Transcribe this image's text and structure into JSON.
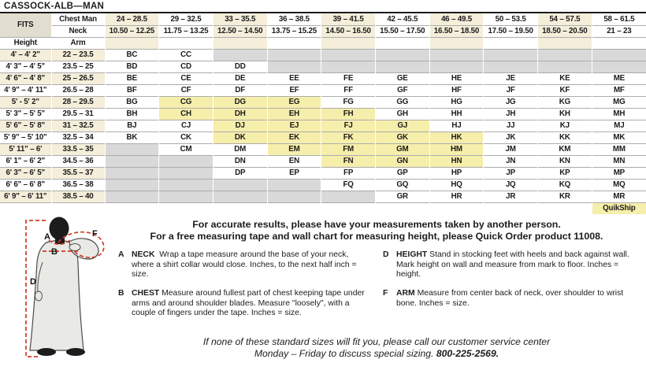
{
  "title": "CASSOCK-ALB—MAN",
  "colors": {
    "cream": "#f4eeda",
    "tan": "#e1ded0",
    "yellow": "#f6eeab",
    "gray": "#d9d9d9",
    "dashred": "#cf3b27",
    "robe": "#e9e9e6"
  },
  "table": {
    "fits_label": "FITS",
    "chest_label": "Chest Man",
    "neck_label": "Neck",
    "height_label": "Height",
    "arm_label": "Arm",
    "quikship_label": "QuikShip",
    "chest_ranges": [
      "24 – 28.5",
      "29 – 32.5",
      "33 – 35.5",
      "36 – 38.5",
      "39 – 41.5",
      "42 – 45.5",
      "46 – 49.5",
      "50 – 53.5",
      "54 – 57.5",
      "58 – 61.5"
    ],
    "neck_ranges": [
      "10.50 – 12.25",
      "11.75 – 13.25",
      "12.50 – 14.50",
      "13.75 – 15.25",
      "14.50 – 16.50",
      "15.50 – 17.50",
      "16.50 – 18.50",
      "17.50 – 19.50",
      "18.50 – 20.50",
      "21 – 23"
    ],
    "quikship_codes": [
      "CG",
      "CH",
      "DG",
      "DH",
      "DJ",
      "DK",
      "EG",
      "EH",
      "EJ",
      "EK",
      "EM",
      "FH",
      "FJ",
      "FK",
      "FM",
      "FN",
      "GJ",
      "GK",
      "GM",
      "GN",
      "HK",
      "HM",
      "HN"
    ],
    "rows": [
      {
        "height": "4' – 4' 2\"",
        "arm": "22 – 23.5",
        "cells": [
          "BC",
          "CC",
          "",
          "",
          "",
          "",
          "",
          "",
          "",
          ""
        ]
      },
      {
        "height": "4' 3\" – 4' 5\"",
        "arm": "23.5 – 25",
        "cells": [
          "BD",
          "CD",
          "DD",
          "",
          "",
          "",
          "",
          "",
          "",
          ""
        ]
      },
      {
        "height": "4' 6\" – 4' 8\"",
        "arm": "25 – 26.5",
        "cells": [
          "BE",
          "CE",
          "DE",
          "EE",
          "FE",
          "GE",
          "HE",
          "JE",
          "KE",
          "ME"
        ]
      },
      {
        "height": "4' 9\" – 4' 11\"",
        "arm": "26.5 – 28",
        "cells": [
          "BF",
          "CF",
          "DF",
          "EF",
          "FF",
          "GF",
          "HF",
          "JF",
          "KF",
          "MF"
        ]
      },
      {
        "height": "5' - 5' 2\"",
        "arm": "28 – 29.5",
        "cells": [
          "BG",
          "CG",
          "DG",
          "EG",
          "FG",
          "GG",
          "HG",
          "JG",
          "KG",
          "MG"
        ]
      },
      {
        "height": "5' 3\" – 5' 5\"",
        "arm": "29.5 – 31",
        "cells": [
          "BH",
          "CH",
          "DH",
          "EH",
          "FH",
          "GH",
          "HH",
          "JH",
          "KH",
          "MH"
        ]
      },
      {
        "height": "5' 6\" – 5' 8\"",
        "arm": "31 – 32.5",
        "cells": [
          "BJ",
          "CJ",
          "DJ",
          "EJ",
          "FJ",
          "GJ",
          "HJ",
          "JJ",
          "KJ",
          "MJ"
        ]
      },
      {
        "height": "5' 9\" – 5' 10\"",
        "arm": "32.5 – 34",
        "cells": [
          "BK",
          "CK",
          "DK",
          "EK",
          "FK",
          "GK",
          "HK",
          "JK",
          "KK",
          "MK"
        ]
      },
      {
        "height": "5' 11\" – 6'",
        "arm": "33.5 – 35",
        "cells": [
          "",
          "CM",
          "DM",
          "EM",
          "FM",
          "GM",
          "HM",
          "JM",
          "KM",
          "MM"
        ]
      },
      {
        "height": "6' 1\" – 6' 2\"",
        "arm": "34.5 – 36",
        "cells": [
          "",
          "",
          "DN",
          "EN",
          "FN",
          "GN",
          "HN",
          "JN",
          "KN",
          "MN"
        ]
      },
      {
        "height": "6' 3\" – 6' 5\"",
        "arm": "35.5 – 37",
        "cells": [
          "",
          "",
          "DP",
          "EP",
          "FP",
          "GP",
          "HP",
          "JP",
          "KP",
          "MP"
        ]
      },
      {
        "height": "6' 6\" – 6' 8\"",
        "arm": "36.5 – 38",
        "cells": [
          "",
          "",
          "",
          "",
          "FQ",
          "GQ",
          "HQ",
          "JQ",
          "KQ",
          "MQ"
        ]
      },
      {
        "height": "6' 9\" – 6' 11\"",
        "arm": "38.5 – 40",
        "cells": [
          "",
          "",
          "",
          "",
          "",
          "GR",
          "HR",
          "JR",
          "KR",
          "MR"
        ]
      }
    ]
  },
  "notes": {
    "line1": "For accurate results, please have your measurements taken by another person.",
    "line2": "For a free measuring tape and wall chart for measuring height, please Quick Order product 11008."
  },
  "instructions": [
    {
      "letter": "A",
      "term": "NECK",
      "text": "Wrap a tape measure around the base of your neck, where a shirt collar would close. Inches, to the next half inch = size."
    },
    {
      "letter": "B",
      "term": "CHEST",
      "text": "Measure around fullest part of chest keeping tape under arms and around shoulder blades. Measure \"loosely\", with a couple of fingers under the tape. Inches = size."
    },
    {
      "letter": "D",
      "term": "HEIGHT",
      "text": "Stand in stocking feet with heels and back against wall. Mark height on wall and measure from mark to floor. Inches = height."
    },
    {
      "letter": "F",
      "term": "ARM",
      "text": "Measure from center back of neck, over shoulder to wrist bone. Inches = size."
    }
  ],
  "footer": {
    "line1": "If none of these standard sizes will fit you, please call our customer service center",
    "line2_prefix": "Monday – Friday to discuss special sizing. ",
    "phone": "800-225-2569."
  },
  "figure": {
    "labels": [
      "A",
      "B",
      "D",
      "F"
    ]
  }
}
